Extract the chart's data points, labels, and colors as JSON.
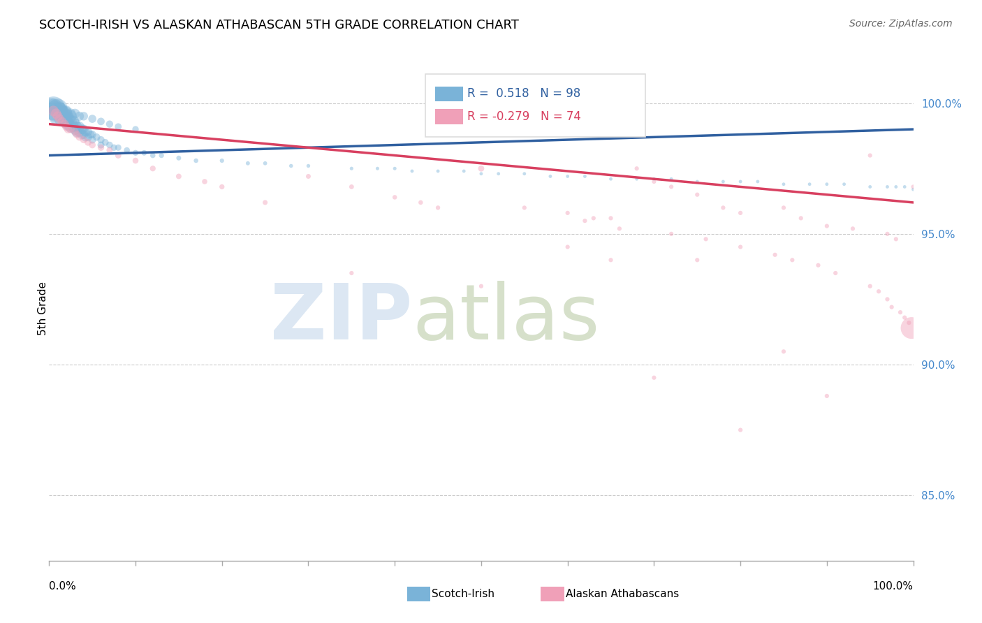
{
  "title": "SCOTCH-IRISH VS ALASKAN ATHABASCAN 5TH GRADE CORRELATION CHART",
  "source": "Source: ZipAtlas.com",
  "ylabel": "5th Grade",
  "ytick_labels": [
    "85.0%",
    "90.0%",
    "95.0%",
    "100.0%"
  ],
  "ytick_values": [
    0.85,
    0.9,
    0.95,
    1.0
  ],
  "xmin": 0.0,
  "xmax": 1.0,
  "ymin": 0.825,
  "ymax": 1.018,
  "blue_R": 0.518,
  "blue_N": 98,
  "pink_R": -0.279,
  "pink_N": 74,
  "blue_color": "#7ab3d8",
  "pink_color": "#f0a0b8",
  "blue_line_color": "#3060a0",
  "pink_line_color": "#d84060",
  "legend_label_blue": "Scotch-Irish",
  "legend_label_pink": "Alaskan Athabascans",
  "blue_line_x0": 0.0,
  "blue_line_y0": 0.98,
  "blue_line_x1": 1.0,
  "blue_line_y1": 0.99,
  "pink_line_x0": 0.0,
  "pink_line_y0": 0.992,
  "pink_line_x1": 1.0,
  "pink_line_y1": 0.962,
  "blue_scatter_x": [
    0.005,
    0.008,
    0.01,
    0.01,
    0.012,
    0.015,
    0.015,
    0.018,
    0.018,
    0.02,
    0.02,
    0.022,
    0.022,
    0.025,
    0.025,
    0.025,
    0.028,
    0.028,
    0.03,
    0.03,
    0.032,
    0.032,
    0.035,
    0.035,
    0.038,
    0.038,
    0.04,
    0.04,
    0.042,
    0.042,
    0.045,
    0.045,
    0.048,
    0.05,
    0.05,
    0.055,
    0.06,
    0.06,
    0.065,
    0.07,
    0.075,
    0.08,
    0.09,
    0.1,
    0.11,
    0.12,
    0.13,
    0.15,
    0.17,
    0.2,
    0.23,
    0.25,
    0.28,
    0.3,
    0.35,
    0.38,
    0.4,
    0.42,
    0.45,
    0.48,
    0.5,
    0.52,
    0.55,
    0.58,
    0.6,
    0.62,
    0.65,
    0.68,
    0.7,
    0.72,
    0.75,
    0.78,
    0.8,
    0.82,
    0.85,
    0.88,
    0.9,
    0.92,
    0.95,
    0.97,
    0.98,
    0.99,
    1.0,
    0.003,
    0.006,
    0.008,
    0.012,
    0.015,
    0.02,
    0.025,
    0.03,
    0.035,
    0.04,
    0.05,
    0.06,
    0.07,
    0.08,
    0.1
  ],
  "blue_scatter_y": [
    0.998,
    0.997,
    0.998,
    0.995,
    0.997,
    0.996,
    0.994,
    0.996,
    0.994,
    0.995,
    0.993,
    0.994,
    0.992,
    0.995,
    0.993,
    0.991,
    0.993,
    0.991,
    0.992,
    0.99,
    0.991,
    0.989,
    0.991,
    0.989,
    0.99,
    0.988,
    0.99,
    0.988,
    0.989,
    0.987,
    0.989,
    0.987,
    0.988,
    0.988,
    0.986,
    0.987,
    0.986,
    0.984,
    0.985,
    0.984,
    0.983,
    0.983,
    0.982,
    0.981,
    0.981,
    0.98,
    0.98,
    0.979,
    0.978,
    0.978,
    0.977,
    0.977,
    0.976,
    0.976,
    0.975,
    0.975,
    0.975,
    0.974,
    0.974,
    0.974,
    0.973,
    0.973,
    0.973,
    0.972,
    0.972,
    0.972,
    0.971,
    0.971,
    0.971,
    0.971,
    0.97,
    0.97,
    0.97,
    0.97,
    0.969,
    0.969,
    0.969,
    0.969,
    0.968,
    0.968,
    0.968,
    0.968,
    0.967,
    0.999,
    0.999,
    0.998,
    0.998,
    0.997,
    0.997,
    0.996,
    0.996,
    0.995,
    0.995,
    0.994,
    0.993,
    0.992,
    0.991,
    0.99
  ],
  "blue_scatter_size": [
    600,
    500,
    400,
    350,
    300,
    280,
    260,
    240,
    220,
    200,
    190,
    180,
    170,
    160,
    155,
    150,
    145,
    140,
    130,
    125,
    120,
    115,
    110,
    105,
    100,
    95,
    90,
    85,
    82,
    78,
    75,
    72,
    68,
    65,
    62,
    58,
    55,
    52,
    50,
    48,
    45,
    42,
    38,
    35,
    32,
    30,
    28,
    25,
    22,
    20,
    18,
    17,
    16,
    15,
    14,
    13,
    13,
    12,
    12,
    12,
    12,
    12,
    12,
    12,
    12,
    12,
    12,
    12,
    12,
    12,
    12,
    12,
    12,
    12,
    12,
    12,
    12,
    12,
    12,
    12,
    12,
    12,
    12,
    250,
    220,
    190,
    160,
    140,
    120,
    110,
    100,
    90,
    80,
    70,
    60,
    55,
    50,
    45
  ],
  "pink_scatter_x": [
    0.005,
    0.008,
    0.01,
    0.012,
    0.015,
    0.018,
    0.02,
    0.022,
    0.025,
    0.03,
    0.032,
    0.035,
    0.04,
    0.045,
    0.05,
    0.06,
    0.07,
    0.08,
    0.1,
    0.12,
    0.15,
    0.18,
    0.2,
    0.25,
    0.3,
    0.35,
    0.4,
    0.43,
    0.45,
    0.5,
    0.55,
    0.6,
    0.63,
    0.65,
    0.68,
    0.7,
    0.72,
    0.75,
    0.78,
    0.8,
    0.85,
    0.87,
    0.9,
    0.93,
    0.95,
    0.97,
    0.98,
    1.0,
    0.62,
    0.66,
    0.72,
    0.76,
    0.8,
    0.84,
    0.86,
    0.89,
    0.91,
    0.95,
    0.96,
    0.97,
    0.975,
    0.985,
    0.99,
    0.995,
    0.998,
    0.35,
    0.5,
    0.6,
    0.65,
    0.7,
    0.75,
    0.8,
    0.85,
    0.9
  ],
  "pink_scatter_y": [
    0.997,
    0.996,
    0.995,
    0.994,
    0.993,
    0.992,
    0.991,
    0.99,
    0.99,
    0.989,
    0.988,
    0.987,
    0.986,
    0.985,
    0.984,
    0.983,
    0.982,
    0.98,
    0.978,
    0.975,
    0.972,
    0.97,
    0.968,
    0.962,
    0.972,
    0.968,
    0.964,
    0.962,
    0.96,
    0.975,
    0.96,
    0.958,
    0.956,
    0.956,
    0.975,
    0.97,
    0.968,
    0.965,
    0.96,
    0.958,
    0.96,
    0.956,
    0.953,
    0.952,
    0.98,
    0.95,
    0.948,
    0.968,
    0.955,
    0.952,
    0.95,
    0.948,
    0.945,
    0.942,
    0.94,
    0.938,
    0.935,
    0.93,
    0.928,
    0.925,
    0.922,
    0.92,
    0.918,
    0.916,
    0.914,
    0.935,
    0.93,
    0.945,
    0.94,
    0.895,
    0.94,
    0.875,
    0.905,
    0.888
  ],
  "pink_scatter_size": [
    120,
    110,
    100,
    90,
    85,
    80,
    75,
    70,
    65,
    60,
    58,
    55,
    52,
    50,
    48,
    45,
    42,
    40,
    38,
    35,
    32,
    30,
    28,
    26,
    25,
    24,
    22,
    22,
    21,
    40,
    20,
    20,
    20,
    20,
    20,
    20,
    20,
    20,
    20,
    20,
    20,
    20,
    20,
    20,
    20,
    20,
    20,
    20,
    20,
    20,
    20,
    20,
    20,
    20,
    20,
    20,
    20,
    20,
    20,
    20,
    20,
    20,
    20,
    20,
    500,
    20,
    20,
    20,
    20,
    20,
    20,
    20,
    20,
    20
  ]
}
